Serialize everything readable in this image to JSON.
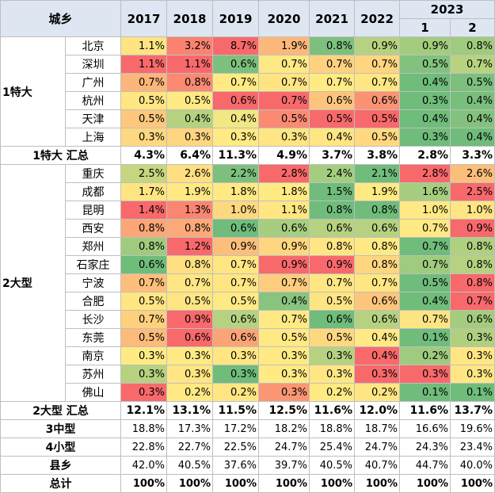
{
  "header": {
    "corner": "城乡",
    "years": [
      "2017",
      "2018",
      "2019",
      "2020",
      "2021",
      "2022"
    ],
    "year_2023": "2023",
    "sub_2023": [
      "1",
      "2"
    ]
  },
  "groups": [
    {
      "name": "1特大",
      "rows": [
        {
          "city": "北京",
          "values": [
            "1.1%",
            "3.2%",
            "8.7%",
            "1.9%",
            "0.8%",
            "0.9%",
            "0.9%",
            "0.8%"
          ],
          "colors": [
            "#fee482",
            "#f98370",
            "#f8696b",
            "#fcb77a",
            "#7dc07e",
            "#b6d280",
            "#a3cc7e",
            "#9fcb7e"
          ]
        },
        {
          "city": "深圳",
          "values": [
            "1.1%",
            "1.1%",
            "0.6%",
            "0.7%",
            "0.7%",
            "0.7%",
            "0.5%",
            "0.7%"
          ],
          "colors": [
            "#f8696b",
            "#f8696b",
            "#7dc07e",
            "#ffe984",
            "#fed280",
            "#ffd580",
            "#81c27e",
            "#b7d37f"
          ]
        },
        {
          "city": "广州",
          "values": [
            "0.7%",
            "0.8%",
            "0.7%",
            "0.7%",
            "0.7%",
            "0.7%",
            "0.4%",
            "0.5%"
          ],
          "colors": [
            "#fcb67a",
            "#fa8a72",
            "#ffea84",
            "#ffe483",
            "#ffeb84",
            "#ffe683",
            "#6fbc7b",
            "#7dc07e"
          ]
        },
        {
          "city": "杭州",
          "values": [
            "0.5%",
            "0.5%",
            "0.6%",
            "0.7%",
            "0.6%",
            "0.6%",
            "0.3%",
            "0.4%"
          ],
          "colors": [
            "#ffe683",
            "#ffea84",
            "#f8696b",
            "#f8696b",
            "#fdc57c",
            "#fb9373",
            "#6fbc7b",
            "#77bf7b"
          ]
        },
        {
          "city": "天津",
          "values": [
            "0.5%",
            "0.4%",
            "0.4%",
            "0.5%",
            "0.5%",
            "0.5%",
            "0.4%",
            "0.4%"
          ],
          "colors": [
            "#fdc77d",
            "#b5d280",
            "#f1e783",
            "#fa8b72",
            "#f8696b",
            "#f8696b",
            "#6fbc7b",
            "#83c27e"
          ]
        },
        {
          "city": "上海",
          "values": [
            "0.3%",
            "0.3%",
            "0.3%",
            "0.3%",
            "0.4%",
            "0.5%",
            "0.3%",
            "0.4%"
          ],
          "colors": [
            "#fed880",
            "#ffd580",
            "#ffea84",
            "#ffe583",
            "#ffe583",
            "#ffd880",
            "#6fbc7b",
            "#6fbc7b"
          ]
        }
      ],
      "subtotal": {
        "label": "1特大 汇总",
        "values": [
          "4.3%",
          "6.4%",
          "11.3%",
          "4.9%",
          "3.7%",
          "3.8%",
          "2.8%",
          "3.3%"
        ]
      }
    },
    {
      "name": "2大型",
      "rows": [
        {
          "city": "重庆",
          "values": [
            "2.5%",
            "2.6%",
            "2.2%",
            "2.8%",
            "2.4%",
            "2.1%",
            "2.8%",
            "2.6%"
          ],
          "colors": [
            "#c4d780",
            "#ffdf82",
            "#7dc07e",
            "#f8696b",
            "#a5cd80",
            "#6fbc7b",
            "#f8696b",
            "#fcbf7b"
          ]
        },
        {
          "city": "成都",
          "values": [
            "1.7%",
            "1.9%",
            "1.8%",
            "1.8%",
            "1.5%",
            "1.9%",
            "1.6%",
            "2.5%"
          ],
          "colors": [
            "#fee583",
            "#ffe984",
            "#ffe984",
            "#ffeb84",
            "#6fbc7b",
            "#ffea84",
            "#a7ce80",
            "#f8696b"
          ]
        },
        {
          "city": "昆明",
          "values": [
            "1.4%",
            "1.3%",
            "1.0%",
            "1.1%",
            "0.8%",
            "0.8%",
            "1.0%",
            "1.0%"
          ],
          "colors": [
            "#f8696b",
            "#fa8671",
            "#fed880",
            "#fee683",
            "#6fbc7b",
            "#6fbc7b",
            "#ffe984",
            "#ffe583"
          ]
        },
        {
          "city": "西安",
          "values": [
            "0.8%",
            "0.8%",
            "0.6%",
            "0.6%",
            "0.6%",
            "0.6%",
            "0.7%",
            "0.9%"
          ],
          "colors": [
            "#fba676",
            "#fca977",
            "#6fbc7b",
            "#a7ce80",
            "#b6d280",
            "#b6d280",
            "#ffe984",
            "#f8696b"
          ]
        },
        {
          "city": "郑州",
          "values": [
            "0.8%",
            "1.2%",
            "0.9%",
            "0.9%",
            "0.8%",
            "0.8%",
            "0.7%",
            "0.8%"
          ],
          "colors": [
            "#9fcb7e",
            "#f8696b",
            "#fcbe7b",
            "#ffd680",
            "#ffe583",
            "#ffe984",
            "#6fbc7b",
            "#afd07f"
          ]
        },
        {
          "city": "石家庄",
          "values": [
            "0.6%",
            "0.8%",
            "0.7%",
            "0.9%",
            "0.9%",
            "0.8%",
            "0.7%",
            "0.8%"
          ],
          "colors": [
            "#6fbc7b",
            "#ffdf82",
            "#ffe683",
            "#f8696b",
            "#f8696b",
            "#fed680",
            "#9fcb7e",
            "#b6d280"
          ]
        },
        {
          "city": "宁波",
          "values": [
            "0.7%",
            "0.7%",
            "0.7%",
            "0.7%",
            "0.7%",
            "0.7%",
            "0.5%",
            "0.8%"
          ],
          "colors": [
            "#fcbf7b",
            "#ffe683",
            "#ffe683",
            "#fdcc7e",
            "#ffe683",
            "#ffe683",
            "#6fbc7b",
            "#f8696b"
          ]
        },
        {
          "city": "合肥",
          "values": [
            "0.5%",
            "0.5%",
            "0.5%",
            "0.4%",
            "0.5%",
            "0.6%",
            "0.4%",
            "0.7%"
          ],
          "colors": [
            "#ffe683",
            "#fee583",
            "#ffe984",
            "#89c47e",
            "#fee583",
            "#fdc57c",
            "#6fbc7b",
            "#f8696b"
          ]
        },
        {
          "city": "长沙",
          "values": [
            "0.7%",
            "0.9%",
            "0.6%",
            "0.7%",
            "0.6%",
            "0.6%",
            "0.7%",
            "0.6%"
          ],
          "colors": [
            "#fdd07e",
            "#f8696b",
            "#b6d280",
            "#ffe984",
            "#6fbc7b",
            "#b6d280",
            "#fee583",
            "#a3cc7e"
          ]
        },
        {
          "city": "东莞",
          "values": [
            "0.5%",
            "0.6%",
            "0.6%",
            "0.5%",
            "0.5%",
            "0.4%",
            "0.1%",
            "0.3%"
          ],
          "colors": [
            "#fcbb7a",
            "#f8696b",
            "#fba476",
            "#ffe984",
            "#fed880",
            "#ffe984",
            "#6fbc7b",
            "#b0d07f"
          ]
        },
        {
          "city": "南京",
          "values": [
            "0.3%",
            "0.3%",
            "0.3%",
            "0.3%",
            "0.3%",
            "0.4%",
            "0.2%",
            "0.3%"
          ],
          "colors": [
            "#ffeb84",
            "#ffea84",
            "#ffe683",
            "#ffea84",
            "#b6d280",
            "#f8696b",
            "#9fcb7e",
            "#ffe683"
          ]
        },
        {
          "city": "苏州",
          "values": [
            "0.3%",
            "0.3%",
            "0.3%",
            "0.3%",
            "0.3%",
            "0.3%",
            "0.3%",
            "0.3%"
          ],
          "colors": [
            "#b6d280",
            "#ffe583",
            "#6fbc7b",
            "#ffea84",
            "#ffe683",
            "#f8696b",
            "#f8696b",
            "#ffe683"
          ]
        },
        {
          "city": "佛山",
          "values": [
            "0.3%",
            "0.2%",
            "0.2%",
            "0.3%",
            "0.2%",
            "0.2%",
            "0.1%",
            "0.1%"
          ],
          "colors": [
            "#f8696b",
            "#ffe984",
            "#ffe683",
            "#fa9673",
            "#ffea84",
            "#ffe683",
            "#6fbc7b",
            "#6fbc7b"
          ]
        }
      ],
      "subtotal": {
        "label": "2大型 汇总",
        "values": [
          "12.1%",
          "13.1%",
          "11.5%",
          "12.5%",
          "11.6%",
          "12.0%",
          "11.6%",
          "13.7%"
        ]
      }
    }
  ],
  "tail": [
    {
      "label": "3中型",
      "values": [
        "18.8%",
        "17.3%",
        "17.2%",
        "18.2%",
        "18.8%",
        "18.7%",
        "16.6%",
        "19.6%"
      ]
    },
    {
      "label": "4小型",
      "values": [
        "22.8%",
        "22.7%",
        "22.5%",
        "24.7%",
        "25.4%",
        "24.7%",
        "24.3%",
        "23.4%"
      ]
    },
    {
      "label": "县乡",
      "values": [
        "42.0%",
        "40.5%",
        "37.6%",
        "39.7%",
        "40.5%",
        "40.7%",
        "44.7%",
        "40.0%"
      ]
    }
  ],
  "total": {
    "label": "总计",
    "values": [
      "100%",
      "100%",
      "100%",
      "100%",
      "100%",
      "100%",
      "100%",
      "100%"
    ]
  }
}
